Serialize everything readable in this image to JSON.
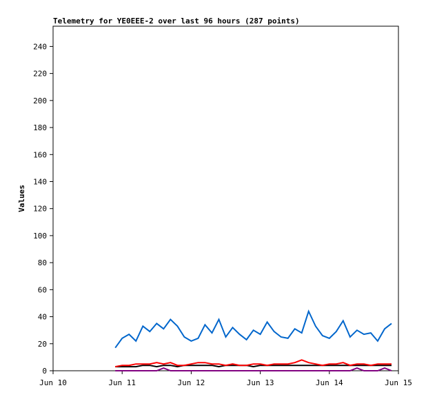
{
  "chart_data": {
    "type": "line",
    "title": "Telemetry for YE0EEE-2 over last 96 hours (287 points)",
    "y_label": "Values",
    "x": [
      10.9,
      11.0,
      11.1,
      11.2,
      11.3,
      11.4,
      11.5,
      11.6,
      11.7,
      11.8,
      11.9,
      12.0,
      12.1,
      12.2,
      12.3,
      12.4,
      12.5,
      12.6,
      12.7,
      12.8,
      12.9,
      13.0,
      13.1,
      13.2,
      13.3,
      13.4,
      13.5,
      13.6,
      13.7,
      13.8,
      13.9,
      14.0,
      14.1,
      14.2,
      14.3,
      14.4,
      14.5,
      14.6,
      14.7,
      14.8,
      14.9
    ],
    "series": [
      {
        "color": "#000000",
        "values": [
          3,
          3,
          3,
          3,
          4,
          4,
          3,
          4,
          4,
          3,
          4,
          4,
          4,
          4,
          4,
          3,
          4,
          4,
          4,
          4,
          3,
          4,
          4,
          4,
          4,
          4,
          4,
          4,
          4,
          4,
          4,
          4,
          4,
          4,
          4,
          4,
          4,
          4,
          4,
          4,
          4
        ]
      },
      {
        "color": "#800080",
        "values": [
          0,
          0,
          0,
          0,
          0,
          0,
          0,
          2,
          0,
          0,
          0,
          0,
          0,
          0,
          0,
          0,
          0,
          0,
          0,
          0,
          0,
          0,
          0,
          0,
          0,
          0,
          0,
          0,
          0,
          0,
          0,
          0,
          0,
          0,
          0,
          2,
          0,
          0,
          0,
          2,
          0
        ]
      },
      {
        "color": "#ff0000",
        "values": [
          3,
          4,
          4,
          5,
          5,
          5,
          6,
          5,
          6,
          4,
          4,
          5,
          6,
          6,
          5,
          5,
          4,
          5,
          4,
          4,
          5,
          5,
          4,
          5,
          5,
          5,
          6,
          8,
          6,
          5,
          4,
          5,
          5,
          6,
          4,
          5,
          5,
          4,
          5,
          5,
          5
        ]
      },
      {
        "color": "#0066cc",
        "values": [
          17,
          24,
          27,
          22,
          33,
          29,
          35,
          31,
          38,
          33,
          25,
          22,
          24,
          34,
          28,
          38,
          25,
          32,
          27,
          23,
          30,
          27,
          36,
          29,
          25,
          24,
          31,
          28,
          44,
          33,
          26,
          24,
          29,
          37,
          25,
          30,
          27,
          28,
          22,
          31,
          35
        ]
      }
    ],
    "xlim": [
      10,
      15
    ],
    "xticks": [
      {
        "value": 10,
        "label": "Jun 10"
      },
      {
        "value": 11,
        "label": "Jun 11"
      },
      {
        "value": 12,
        "label": "Jun 12"
      },
      {
        "value": 13,
        "label": "Jun 13"
      },
      {
        "value": 14,
        "label": "Jun 14"
      },
      {
        "value": 15,
        "label": "Jun 15"
      }
    ],
    "ylim": [
      0,
      255
    ],
    "yticks": [
      0,
      20,
      40,
      60,
      80,
      100,
      120,
      140,
      160,
      180,
      200,
      220,
      240
    ]
  }
}
